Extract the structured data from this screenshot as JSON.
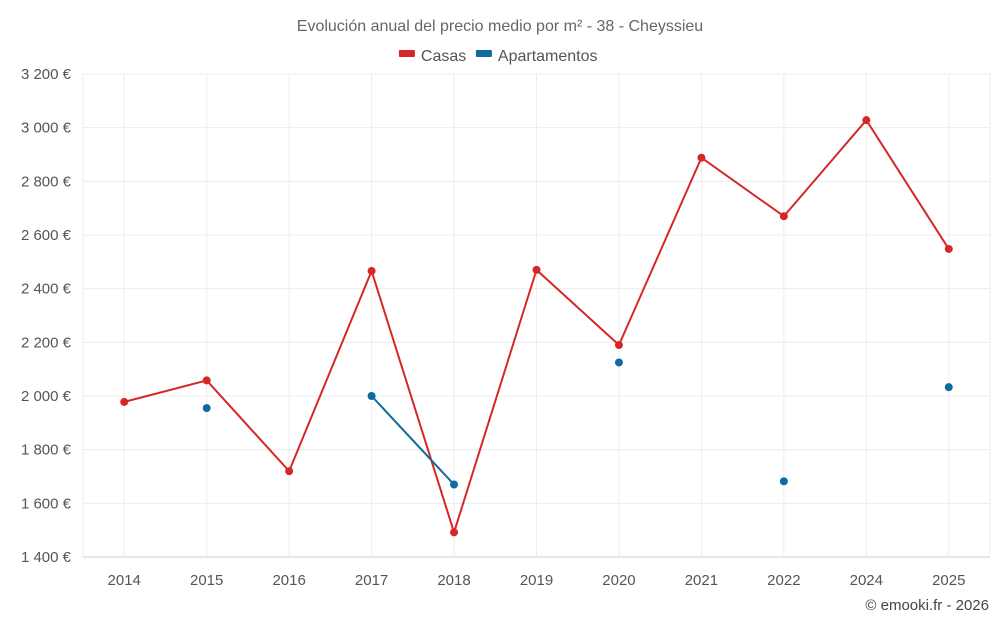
{
  "chart_data": {
    "type": "line",
    "title": "Evolución anual del precio medio por m² - 38 - Cheyssieu",
    "categories": [
      "2014",
      "2015",
      "2016",
      "2017",
      "2018",
      "2019",
      "2020",
      "2021",
      "2022",
      "2024",
      "2025"
    ],
    "y_ticks": [
      "1 400 €",
      "1 600 €",
      "1 800 €",
      "2 000 €",
      "2 200 €",
      "2 400 €",
      "2 600 €",
      "2 800 €",
      "3 000 €",
      "3 200 €"
    ],
    "ylim": [
      1400,
      3200
    ],
    "grid": true,
    "legend_position": "top-center",
    "series": [
      {
        "name": "Casas",
        "color": "#d62728",
        "values": [
          1978,
          2058,
          1720,
          2466,
          1492,
          2470,
          2190,
          2888,
          2670,
          3028,
          2548
        ]
      },
      {
        "name": "Apartamentos",
        "color": "#0e6aa0",
        "values": [
          null,
          1955,
          null,
          2000,
          1670,
          null,
          2125,
          null,
          1682,
          null,
          2033
        ]
      }
    ],
    "credit": "© emooki.fr - 2026"
  }
}
